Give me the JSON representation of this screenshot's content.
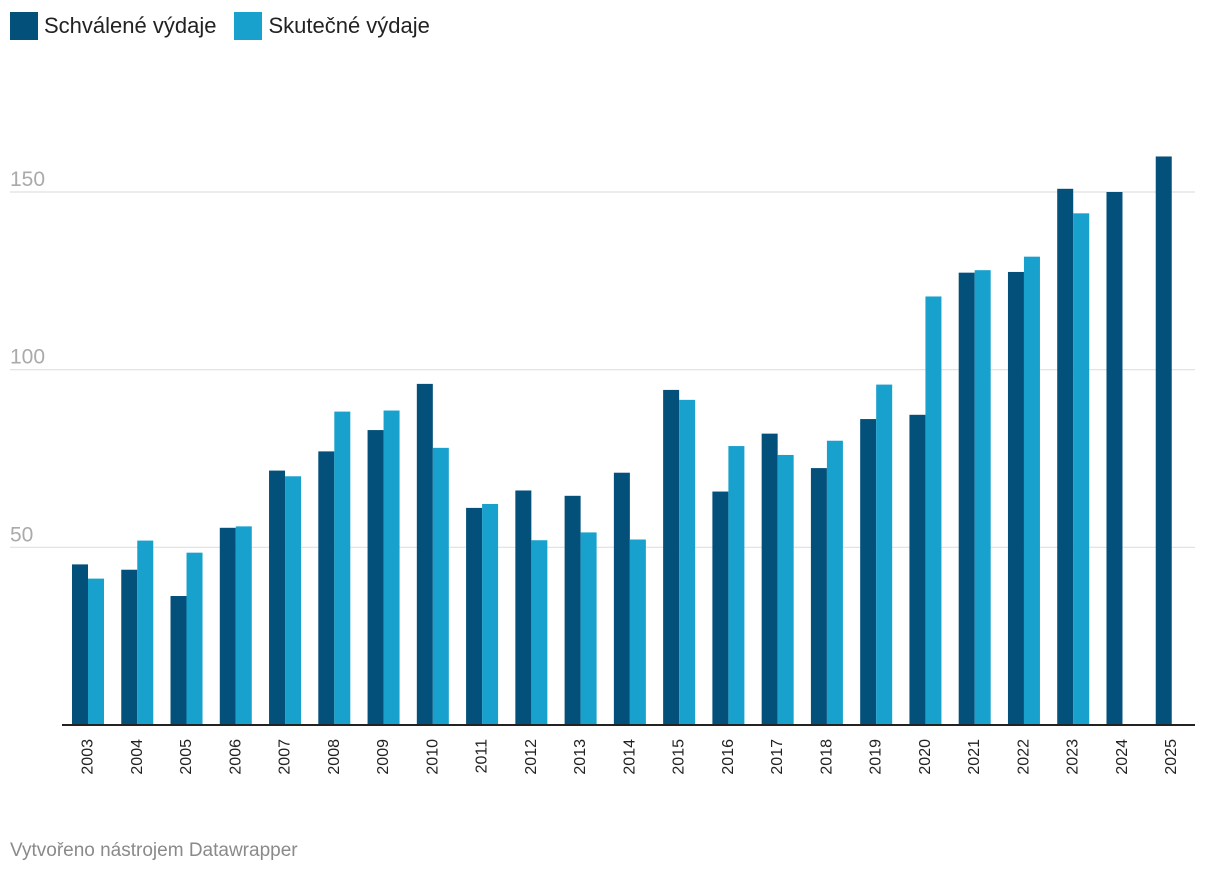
{
  "legend": {
    "approved_label": "Schválené výdaje",
    "actual_label": "Skutečné výdaje"
  },
  "colors": {
    "approved": "#03507a",
    "actual": "#18a1cd",
    "grid": "#e0e0e0",
    "axis": "#222222",
    "tick_text": "#aaaaaa"
  },
  "footer": {
    "credit": "Vytvořeno nástrojem Datawrapper"
  },
  "chart_data": {
    "type": "bar",
    "title": "",
    "xlabel": "",
    "ylabel": "",
    "ylim": [
      0,
      170
    ],
    "yticks": [
      50,
      100,
      150
    ],
    "grid": true,
    "legend_position": "top-left",
    "categories": [
      "2003",
      "2004",
      "2005",
      "2006",
      "2007",
      "2008",
      "2009",
      "2010",
      "2011",
      "2012",
      "2013",
      "2014",
      "2015",
      "2016",
      "2017",
      "2018",
      "2019",
      "2020",
      "2021",
      "2022",
      "2023",
      "2024",
      "2025"
    ],
    "series": [
      {
        "name": "Schválené výdaje",
        "values": [
          45.2,
          43.7,
          36.3,
          55.5,
          71.6,
          77.0,
          83.0,
          96.0,
          61.1,
          66.0,
          64.5,
          71.0,
          94.3,
          65.7,
          82.0,
          72.3,
          86.1,
          87.3,
          127.3,
          127.5,
          150.9,
          150.0,
          160.0
        ]
      },
      {
        "name": "Skutečné výdaje",
        "values": [
          41.2,
          51.9,
          48.5,
          55.9,
          70.0,
          88.2,
          88.5,
          78.0,
          62.2,
          52.0,
          54.2,
          52.2,
          91.5,
          78.5,
          76.0,
          80.0,
          95.8,
          120.6,
          128.0,
          131.8,
          144.0,
          null,
          null
        ]
      }
    ]
  }
}
